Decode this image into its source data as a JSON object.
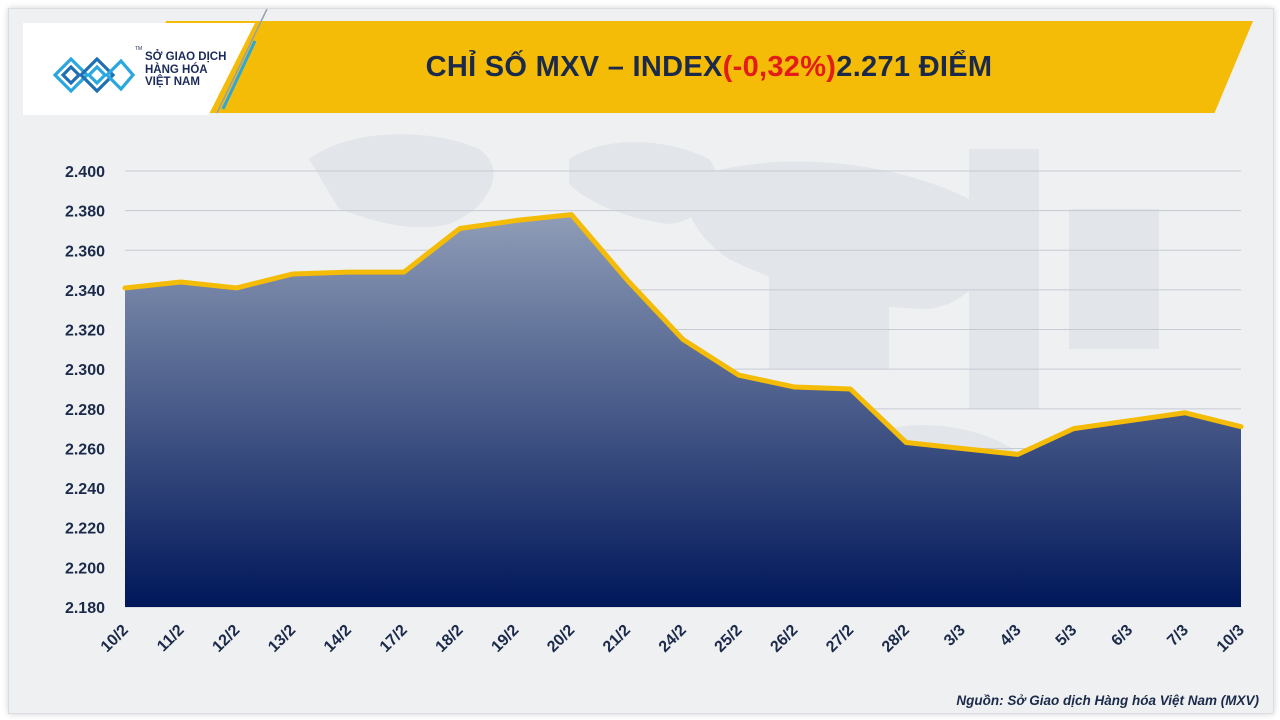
{
  "header": {
    "title_prefix": "CHỈ SỐ MXV – INDEX ",
    "title_change": "(-0,32%)",
    "title_suffix": " 2.271 ĐIỂM"
  },
  "logo": {
    "line1": "SỞ GIAO DỊCH",
    "line2": "HÀNG HÓA",
    "line3": "VIỆT NAM",
    "mark": "TM"
  },
  "source_note": "Nguồn: Sở Giao dịch Hàng hóa Việt Nam (MXV)",
  "colors": {
    "title_bar": "#f4bc06",
    "title_text": "#1b2a4a",
    "change_negative": "#e31b1b",
    "line": "#f4bc06",
    "area_top": "#8f9db7",
    "area_bottom": "#00175a"
  },
  "chart_data": {
    "type": "area",
    "categories": [
      "10/2",
      "11/2",
      "12/2",
      "13/2",
      "14/2",
      "17/2",
      "18/2",
      "19/2",
      "20/2",
      "21/2",
      "24/2",
      "25/2",
      "26/2",
      "27/2",
      "28/2",
      "3/3",
      "4/3",
      "5/3",
      "6/3",
      "7/3",
      "10/3"
    ],
    "series": [
      {
        "values": [
          2341,
          2344,
          2341,
          2348,
          2349,
          2349,
          2371,
          2375,
          2378,
          2345,
          2315,
          2297,
          2291,
          2290,
          2263,
          2260,
          2257,
          2270,
          2274,
          2278,
          2271
        ]
      }
    ],
    "ylim": [
      2180,
      2400
    ],
    "yticks": [
      "2.180",
      "2.200",
      "2.220",
      "2.240",
      "2.260",
      "2.280",
      "2.300",
      "2.320",
      "2.340",
      "2.360",
      "2.380",
      "2.400"
    ],
    "ytick_values": [
      2180,
      2200,
      2220,
      2240,
      2260,
      2280,
      2300,
      2320,
      2340,
      2360,
      2380,
      2400
    ],
    "grid": true,
    "legend": "none"
  }
}
